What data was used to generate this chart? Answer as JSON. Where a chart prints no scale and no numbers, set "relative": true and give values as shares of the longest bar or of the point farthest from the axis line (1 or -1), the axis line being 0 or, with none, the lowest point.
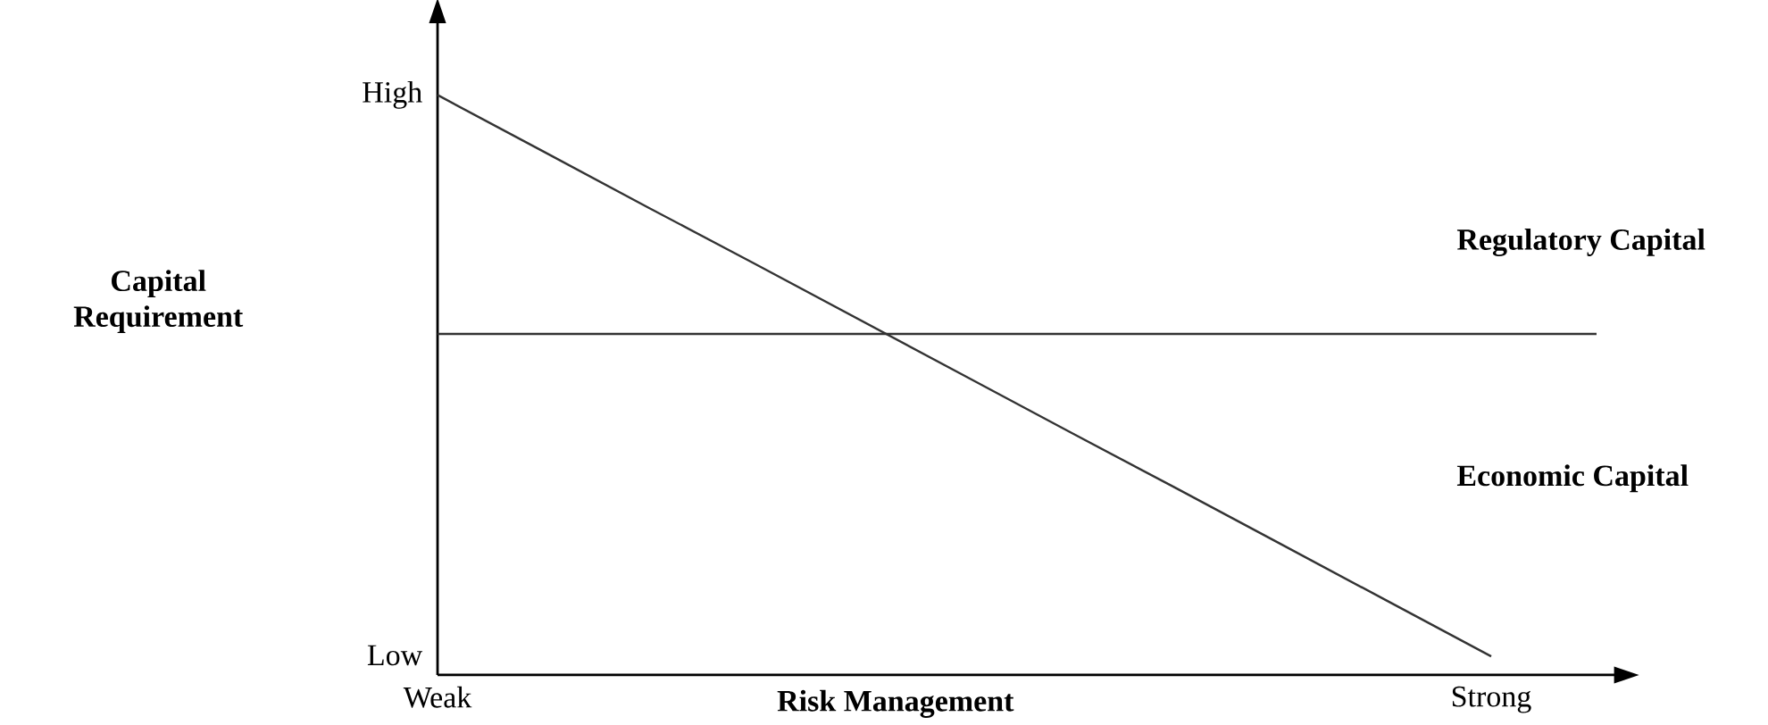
{
  "chart_data": {
    "type": "line",
    "relative": true,
    "xlabel": "Risk Management",
    "categories": [
      "Weak",
      null,
      null,
      null,
      null,
      null,
      null,
      null,
      null,
      null,
      "Strong",
      null
    ],
    "annotations": [
      "High",
      "Low",
      "Capital Requirement",
      "Regulatory Capital",
      "Economic Capital"
    ],
    "series": [
      {
        "color": "#333333",
        "values": [
          0.588,
          0.588,
          0.588,
          0.588,
          0.588,
          0.588,
          0.588,
          0.588,
          0.588,
          0.588,
          0.588,
          0.588
        ]
      },
      {
        "color": "#333333",
        "values": [
          1,
          0.903,
          0.806,
          0.71,
          0.613,
          0.516,
          0.419,
          0.323,
          0.226,
          0.129,
          0.032,
          null
        ]
      }
    ],
    "marker": "none",
    "line_style": "solid"
  }
}
